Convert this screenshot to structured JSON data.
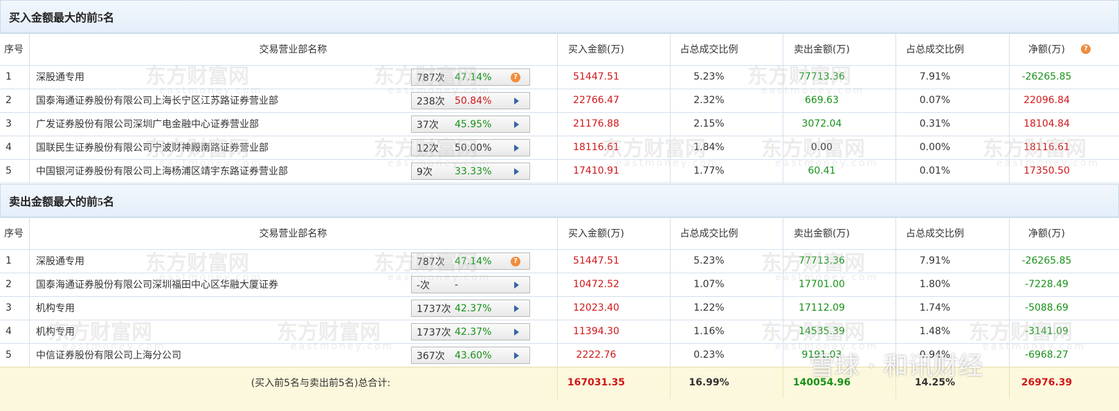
{
  "sections": [
    {
      "title": "买入金额最大的前5名",
      "columns": [
        "序号",
        "交易营业部名称",
        "买入金额(万)",
        "占总成交比例",
        "卖出金额(万)",
        "占总成交比例",
        "净额(万)"
      ],
      "net_help_icon": true,
      "rows": [
        {
          "rank": "1",
          "name": "深股通专用",
          "count": "787次",
          "pct": "47.14%",
          "pct_color": "green",
          "badge_icon": "help",
          "buy": "51447.51",
          "buy_ratio": "5.23%",
          "sell": "77713.36",
          "sell_ratio": "7.91%",
          "net": "-26265.85"
        },
        {
          "rank": "2",
          "name": "国泰海通证券股份有限公司上海长宁区江苏路证券营业部",
          "count": "238次",
          "pct": "50.84%",
          "pct_color": "red",
          "badge_icon": "arrow",
          "buy": "22766.47",
          "buy_ratio": "2.32%",
          "sell": "669.63",
          "sell_ratio": "0.07%",
          "net": "22096.84"
        },
        {
          "rank": "3",
          "name": "广发证券股份有限公司深圳广电金融中心证券营业部",
          "count": "37次",
          "pct": "45.95%",
          "pct_color": "green",
          "badge_icon": "arrow",
          "buy": "21176.88",
          "buy_ratio": "2.15%",
          "sell": "3072.04",
          "sell_ratio": "0.31%",
          "net": "18104.84"
        },
        {
          "rank": "4",
          "name": "国联民生证券股份有限公司宁波财神殿南路证券营业部",
          "count": "12次",
          "pct": "50.00%",
          "pct_color": "dark",
          "badge_icon": "arrow",
          "buy": "18116.61",
          "buy_ratio": "1.84%",
          "sell": "0.00",
          "sell_ratio": "0.00%",
          "net": "18116.61"
        },
        {
          "rank": "5",
          "name": "中国银河证券股份有限公司上海杨浦区靖宇东路证券营业部",
          "count": "9次",
          "pct": "33.33%",
          "pct_color": "green",
          "badge_icon": "arrow",
          "buy": "17410.91",
          "buy_ratio": "1.77%",
          "sell": "60.41",
          "sell_ratio": "0.01%",
          "net": "17350.50"
        }
      ]
    },
    {
      "title": "卖出金额最大的前5名",
      "columns": [
        "序号",
        "交易营业部名称",
        "买入金额(万)",
        "占总成交比例",
        "卖出金额(万)",
        "占总成交比例",
        "净额(万)"
      ],
      "net_help_icon": false,
      "rows": [
        {
          "rank": "1",
          "name": "深股通专用",
          "count": "787次",
          "pct": "47.14%",
          "pct_color": "green",
          "badge_icon": "help",
          "buy": "51447.51",
          "buy_ratio": "5.23%",
          "sell": "77713.36",
          "sell_ratio": "7.91%",
          "net": "-26265.85"
        },
        {
          "rank": "2",
          "name": "国泰海通证券股份有限公司深圳福田中心区华融大厦证券",
          "count": "-次",
          "pct": "-",
          "pct_color": "dark",
          "badge_icon": "arrow",
          "buy": "10472.52",
          "buy_ratio": "1.07%",
          "sell": "17701.00",
          "sell_ratio": "1.80%",
          "net": "-7228.49"
        },
        {
          "rank": "3",
          "name": "机构专用",
          "count": "1737次",
          "pct": "42.37%",
          "pct_color": "green",
          "badge_icon": "arrow",
          "buy": "12023.40",
          "buy_ratio": "1.22%",
          "sell": "17112.09",
          "sell_ratio": "1.74%",
          "net": "-5088.69"
        },
        {
          "rank": "4",
          "name": "机构专用",
          "count": "1737次",
          "pct": "42.37%",
          "pct_color": "green",
          "badge_icon": "arrow",
          "buy": "11394.30",
          "buy_ratio": "1.16%",
          "sell": "14535.39",
          "sell_ratio": "1.48%",
          "net": "-3141.09"
        },
        {
          "rank": "5",
          "name": "中信证券股份有限公司上海分公司",
          "count": "367次",
          "pct": "43.60%",
          "pct_color": "green",
          "badge_icon": "arrow",
          "buy": "2222.76",
          "buy_ratio": "0.23%",
          "sell": "9191.03",
          "sell_ratio": "0.94%",
          "net": "-6968.27"
        }
      ]
    }
  ],
  "total": {
    "label": "(买入前5名与卖出前5名)总合计:",
    "buy": "167031.35",
    "buy_ratio": "16.99%",
    "sell": "140054.96",
    "sell_ratio": "14.25%",
    "net": "26976.39"
  },
  "watermark": {
    "site": "东方财富网",
    "domain": "eastmoney.com",
    "source": "雪球 · 和讯财经"
  }
}
